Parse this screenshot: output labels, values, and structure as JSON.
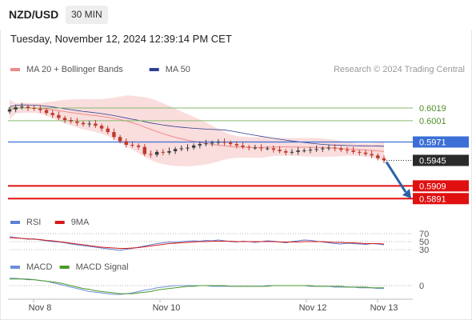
{
  "header": {
    "pair": "NZD/USD",
    "timeframe": "30 MIN",
    "datetime": "Tuesday, November 12, 2024 12:39:14 PM CET"
  },
  "colors": {
    "candle_up": "#3a3a3a",
    "candle_down": "#c0392b",
    "bollinger": "#f7c7c7",
    "ma50": "#2c3e90",
    "resistance": "#86b96e",
    "pivot": "#3b6fd6",
    "support": "#e01010",
    "rsi": "#5b7fd4",
    "rsi_9ma": "#d61a1a",
    "macd": "#6d8fd8",
    "macd_signal": "#4a9a2a",
    "arrow": "#2a62a8"
  },
  "chart_data": [
    {
      "type": "candlestick",
      "legend": [
        {
          "label": "MA 20 + Bollinger Bands",
          "color": "#f08a8a"
        },
        {
          "label": "MA 50",
          "color": "#2c3e90"
        }
      ],
      "watermark": "Research © 2024 Trading Central",
      "x_ticks": [
        "Nov 8",
        "Nov 10",
        "Nov 12",
        "Nov 13"
      ],
      "y_range": [
        0.588,
        0.6045
      ],
      "levels": [
        {
          "label": "0.6019",
          "value": 0.6019,
          "kind": "resistance"
        },
        {
          "label": "0.6001",
          "value": 0.6001,
          "kind": "resistance"
        },
        {
          "label": "0.5971",
          "value": 0.5971,
          "kind": "pivot"
        },
        {
          "label": "0.5945",
          "value": 0.5945,
          "kind": "last"
        },
        {
          "label": "0.5909",
          "value": 0.5909,
          "kind": "support"
        },
        {
          "label": "0.5891",
          "value": 0.5891,
          "kind": "support"
        }
      ],
      "close": [
        0.6017,
        0.602,
        0.6021,
        0.6019,
        0.6018,
        0.6016,
        0.6012,
        0.6009,
        0.6005,
        0.6002,
        0.6,
        0.5998,
        0.5996,
        0.5997,
        0.5994,
        0.599,
        0.5985,
        0.5978,
        0.5972,
        0.5967,
        0.5966,
        0.5964,
        0.5954,
        0.5953,
        0.5957,
        0.5956,
        0.5958,
        0.5961,
        0.5962,
        0.5963,
        0.5966,
        0.5968,
        0.5969,
        0.597,
        0.5971,
        0.597,
        0.5968,
        0.5966,
        0.5964,
        0.5963,
        0.5963,
        0.5962,
        0.5962,
        0.596,
        0.5958,
        0.5956,
        0.5957,
        0.5959,
        0.5959,
        0.596,
        0.5961,
        0.5962,
        0.5963,
        0.5962,
        0.596,
        0.5959,
        0.5957,
        0.5956,
        0.5954,
        0.5952,
        0.5948,
        0.5945
      ]
    },
    {
      "type": "line",
      "name": "RSI",
      "legend": [
        {
          "label": "RSI",
          "color": "#5b7fd4"
        },
        {
          "label": "9MA",
          "color": "#d61a1a"
        }
      ],
      "y_ticks": [
        70,
        50,
        30
      ],
      "y_range": [
        0,
        100
      ],
      "series": [
        {
          "name": "RSI",
          "values": [
            62,
            60,
            58,
            56,
            57,
            54,
            52,
            50,
            49,
            47,
            44,
            42,
            40,
            38,
            36,
            34,
            32,
            30,
            28,
            31,
            33,
            36,
            39,
            42,
            45,
            47,
            49,
            48,
            50,
            51,
            52,
            51,
            53,
            52,
            54,
            52,
            50,
            49,
            51,
            50,
            48,
            50,
            52,
            51,
            49,
            47,
            50,
            52,
            54,
            53,
            51,
            49,
            47,
            45,
            44,
            46,
            45,
            44,
            43,
            45,
            44,
            42
          ]
        },
        {
          "name": "9MA",
          "values": [
            60,
            59,
            58,
            57,
            56,
            55,
            53,
            52,
            50,
            48,
            46,
            44,
            42,
            40,
            38,
            36,
            35,
            34,
            33,
            33,
            34,
            35,
            37,
            39,
            41,
            43,
            45,
            46,
            47,
            48,
            49,
            50,
            50,
            51,
            51,
            51,
            51,
            50,
            50,
            50,
            50,
            50,
            50,
            50,
            49,
            49,
            49,
            49,
            50,
            50,
            50,
            50,
            49,
            48,
            48,
            47,
            47,
            46,
            45,
            45,
            45,
            44
          ]
        }
      ]
    },
    {
      "type": "line",
      "name": "MACD",
      "legend": [
        {
          "label": "MACD",
          "color": "#6d8fd8"
        },
        {
          "label": "MACD Signal",
          "color": "#4a9a2a"
        }
      ],
      "y_ticks": [
        0
      ],
      "y_range": [
        -0.0015,
        0.0015
      ],
      "series": [
        {
          "name": "MACD",
          "values": [
            0.001,
            0.001,
            0.0009,
            0.0009,
            0.0008,
            0.0007,
            0.0006,
            0.0004,
            0.0002,
            0.0,
            -0.0002,
            -0.0004,
            -0.0006,
            -0.0008,
            -0.0009,
            -0.001,
            -0.0011,
            -0.0012,
            -0.0012,
            -0.0011,
            -0.001,
            -0.0008,
            -0.0006,
            -0.0005,
            -0.0003,
            -0.0002,
            -0.0001,
            0.0,
            0.0,
            0.0,
            0.0,
            0.0,
            0.0,
            -0.0001,
            -0.0001,
            -0.0001,
            -0.0001,
            -0.0001,
            -0.0001,
            -0.0001,
            -0.0001,
            -0.0001,
            0.0,
            0.0,
            0.0,
            0.0,
            0.0,
            0.0,
            0.0,
            -0.0001,
            -0.0001,
            -0.0001,
            -0.0001,
            -0.0002,
            -0.0002,
            -0.0002,
            -0.0002,
            -0.0003,
            -0.0003,
            -0.0003,
            -0.0004,
            -0.0004
          ]
        },
        {
          "name": "MACD Signal",
          "values": [
            0.0009,
            0.0009,
            0.0009,
            0.0008,
            0.0008,
            0.0007,
            0.0006,
            0.0005,
            0.0004,
            0.0002,
            0.0,
            -0.0002,
            -0.0004,
            -0.0005,
            -0.0007,
            -0.0008,
            -0.0009,
            -0.001,
            -0.0011,
            -0.0011,
            -0.0011,
            -0.001,
            -0.0009,
            -0.0008,
            -0.0006,
            -0.0005,
            -0.0004,
            -0.0003,
            -0.0002,
            -0.0001,
            -0.0001,
            0.0,
            0.0,
            0.0,
            0.0,
            0.0,
            -0.0001,
            -0.0001,
            -0.0001,
            -0.0001,
            -0.0001,
            -0.0001,
            -0.0001,
            0.0,
            0.0,
            0.0,
            0.0,
            0.0,
            0.0,
            0.0,
            -0.0001,
            -0.0001,
            -0.0001,
            -0.0001,
            -0.0001,
            -0.0002,
            -0.0002,
            -0.0002,
            -0.0002,
            -0.0003,
            -0.0003,
            -0.0003
          ]
        }
      ]
    }
  ]
}
